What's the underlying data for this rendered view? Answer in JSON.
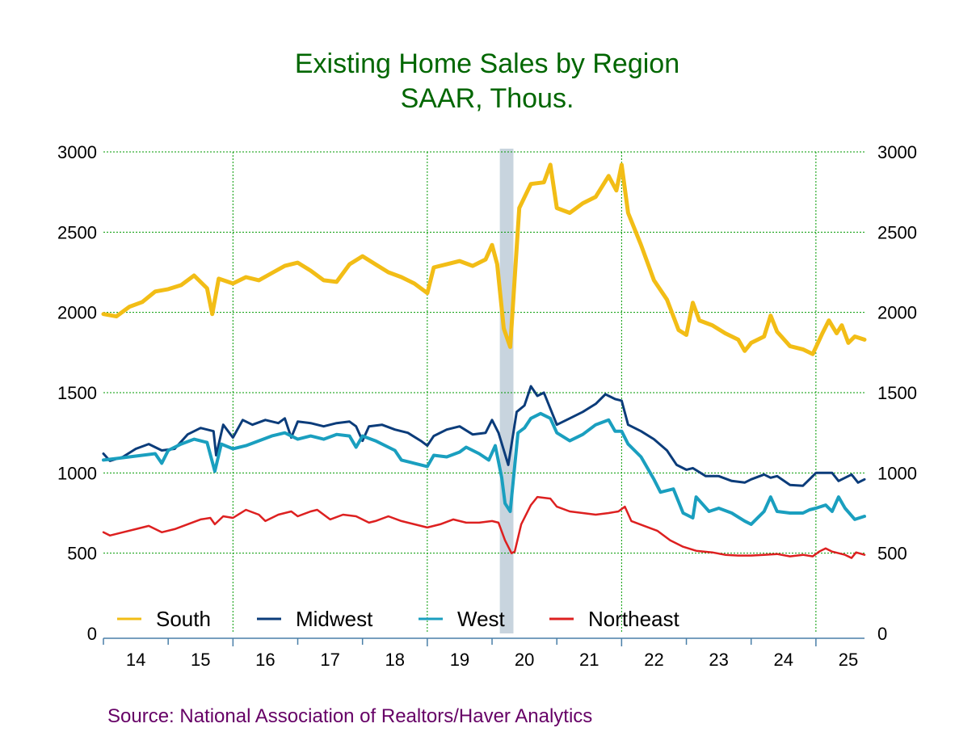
{
  "chart_data": {
    "type": "line",
    "title": "Existing Home Sales by Region",
    "subtitle": "SAAR, Thous.",
    "source": "Source:  National Association of Realtors/Haver Analytics",
    "ylim": [
      0,
      3000
    ],
    "yticks": [
      0,
      500,
      1000,
      1500,
      2000,
      2500,
      3000
    ],
    "xlim": [
      2014.0,
      2025.75
    ],
    "xtick_labels": [
      "14",
      "15",
      "16",
      "17",
      "18",
      "19",
      "20",
      "21",
      "22",
      "23",
      "24",
      "25"
    ],
    "grid": true,
    "recession_band": [
      2020.12,
      2020.33
    ],
    "legend_position": "bottom-left",
    "colors": {
      "South": "#f2bd16",
      "Midwest": "#0b3c7a",
      "West": "#1a9fbf",
      "Northeast": "#dd2020",
      "grid": "#009900",
      "recession": "#c8d4de",
      "title": "#006600",
      "source": "#660066"
    },
    "series": [
      {
        "name": "South",
        "width": 5,
        "points": [
          [
            2014.0,
            1990
          ],
          [
            2014.2,
            1975
          ],
          [
            2014.4,
            2035
          ],
          [
            2014.6,
            2065
          ],
          [
            2014.8,
            2130
          ],
          [
            2015.0,
            2145
          ],
          [
            2015.2,
            2170
          ],
          [
            2015.4,
            2230
          ],
          [
            2015.6,
            2150
          ],
          [
            2015.68,
            1990
          ],
          [
            2015.78,
            2210
          ],
          [
            2016.0,
            2180
          ],
          [
            2016.2,
            2220
          ],
          [
            2016.4,
            2200
          ],
          [
            2016.6,
            2245
          ],
          [
            2016.8,
            2290
          ],
          [
            2017.0,
            2310
          ],
          [
            2017.2,
            2260
          ],
          [
            2017.4,
            2200
          ],
          [
            2017.6,
            2190
          ],
          [
            2017.8,
            2300
          ],
          [
            2018.0,
            2350
          ],
          [
            2018.2,
            2300
          ],
          [
            2018.4,
            2250
          ],
          [
            2018.6,
            2220
          ],
          [
            2018.8,
            2180
          ],
          [
            2019.0,
            2120
          ],
          [
            2019.1,
            2280
          ],
          [
            2019.3,
            2300
          ],
          [
            2019.5,
            2320
          ],
          [
            2019.7,
            2290
          ],
          [
            2019.9,
            2330
          ],
          [
            2020.0,
            2420
          ],
          [
            2020.08,
            2300
          ],
          [
            2020.18,
            1900
          ],
          [
            2020.28,
            1785
          ],
          [
            2020.42,
            2650
          ],
          [
            2020.6,
            2800
          ],
          [
            2020.8,
            2810
          ],
          [
            2020.9,
            2920
          ],
          [
            2021.0,
            2650
          ],
          [
            2021.2,
            2620
          ],
          [
            2021.4,
            2680
          ],
          [
            2021.6,
            2720
          ],
          [
            2021.8,
            2850
          ],
          [
            2021.92,
            2760
          ],
          [
            2022.0,
            2920
          ],
          [
            2022.1,
            2620
          ],
          [
            2022.3,
            2420
          ],
          [
            2022.5,
            2200
          ],
          [
            2022.7,
            2080
          ],
          [
            2022.88,
            1890
          ],
          [
            2023.0,
            1860
          ],
          [
            2023.1,
            2060
          ],
          [
            2023.2,
            1950
          ],
          [
            2023.4,
            1920
          ],
          [
            2023.6,
            1870
          ],
          [
            2023.8,
            1830
          ],
          [
            2023.9,
            1760
          ],
          [
            2024.0,
            1810
          ],
          [
            2024.2,
            1850
          ],
          [
            2024.3,
            1980
          ],
          [
            2024.4,
            1880
          ],
          [
            2024.6,
            1790
          ],
          [
            2024.8,
            1770
          ],
          [
            2024.95,
            1740
          ],
          [
            2025.1,
            1870
          ],
          [
            2025.2,
            1950
          ],
          [
            2025.32,
            1870
          ],
          [
            2025.4,
            1920
          ],
          [
            2025.5,
            1810
          ],
          [
            2025.6,
            1850
          ],
          [
            2025.75,
            1830
          ]
        ]
      },
      {
        "name": "Midwest",
        "width": 3,
        "points": [
          [
            2014.0,
            1120
          ],
          [
            2014.1,
            1075
          ],
          [
            2014.3,
            1100
          ],
          [
            2014.5,
            1150
          ],
          [
            2014.7,
            1180
          ],
          [
            2014.9,
            1140
          ],
          [
            2015.1,
            1150
          ],
          [
            2015.3,
            1240
          ],
          [
            2015.5,
            1280
          ],
          [
            2015.7,
            1260
          ],
          [
            2015.74,
            1110
          ],
          [
            2015.85,
            1300
          ],
          [
            2016.0,
            1220
          ],
          [
            2016.15,
            1330
          ],
          [
            2016.3,
            1300
          ],
          [
            2016.5,
            1330
          ],
          [
            2016.7,
            1310
          ],
          [
            2016.8,
            1340
          ],
          [
            2016.9,
            1220
          ],
          [
            2017.0,
            1320
          ],
          [
            2017.2,
            1310
          ],
          [
            2017.4,
            1290
          ],
          [
            2017.6,
            1310
          ],
          [
            2017.8,
            1320
          ],
          [
            2017.9,
            1290
          ],
          [
            2018.0,
            1200
          ],
          [
            2018.1,
            1290
          ],
          [
            2018.3,
            1300
          ],
          [
            2018.5,
            1270
          ],
          [
            2018.7,
            1250
          ],
          [
            2018.9,
            1200
          ],
          [
            2019.0,
            1170
          ],
          [
            2019.1,
            1230
          ],
          [
            2019.3,
            1270
          ],
          [
            2019.5,
            1290
          ],
          [
            2019.7,
            1240
          ],
          [
            2019.9,
            1250
          ],
          [
            2020.0,
            1330
          ],
          [
            2020.1,
            1250
          ],
          [
            2020.25,
            1050
          ],
          [
            2020.38,
            1380
          ],
          [
            2020.5,
            1420
          ],
          [
            2020.6,
            1540
          ],
          [
            2020.7,
            1480
          ],
          [
            2020.8,
            1500
          ],
          [
            2020.92,
            1380
          ],
          [
            2021.0,
            1300
          ],
          [
            2021.2,
            1340
          ],
          [
            2021.4,
            1380
          ],
          [
            2021.6,
            1430
          ],
          [
            2021.75,
            1490
          ],
          [
            2021.9,
            1460
          ],
          [
            2022.0,
            1450
          ],
          [
            2022.1,
            1300
          ],
          [
            2022.3,
            1260
          ],
          [
            2022.5,
            1210
          ],
          [
            2022.7,
            1140
          ],
          [
            2022.85,
            1050
          ],
          [
            2023.0,
            1020
          ],
          [
            2023.1,
            1030
          ],
          [
            2023.3,
            980
          ],
          [
            2023.5,
            980
          ],
          [
            2023.7,
            950
          ],
          [
            2023.9,
            940
          ],
          [
            2024.0,
            960
          ],
          [
            2024.2,
            990
          ],
          [
            2024.3,
            970
          ],
          [
            2024.4,
            980
          ],
          [
            2024.6,
            925
          ],
          [
            2024.8,
            920
          ],
          [
            2024.9,
            960
          ],
          [
            2025.0,
            1000
          ],
          [
            2025.25,
            1000
          ],
          [
            2025.35,
            950
          ],
          [
            2025.55,
            990
          ],
          [
            2025.65,
            940
          ],
          [
            2025.75,
            960
          ]
        ]
      },
      {
        "name": "West",
        "width": 4,
        "points": [
          [
            2014.0,
            1080
          ],
          [
            2014.2,
            1090
          ],
          [
            2014.4,
            1100
          ],
          [
            2014.6,
            1110
          ],
          [
            2014.8,
            1120
          ],
          [
            2014.9,
            1060
          ],
          [
            2015.0,
            1140
          ],
          [
            2015.2,
            1180
          ],
          [
            2015.4,
            1210
          ],
          [
            2015.6,
            1190
          ],
          [
            2015.72,
            1010
          ],
          [
            2015.82,
            1180
          ],
          [
            2016.0,
            1150
          ],
          [
            2016.2,
            1170
          ],
          [
            2016.4,
            1200
          ],
          [
            2016.6,
            1230
          ],
          [
            2016.8,
            1250
          ],
          [
            2017.0,
            1210
          ],
          [
            2017.2,
            1230
          ],
          [
            2017.4,
            1210
          ],
          [
            2017.6,
            1240
          ],
          [
            2017.8,
            1230
          ],
          [
            2017.9,
            1160
          ],
          [
            2018.0,
            1230
          ],
          [
            2018.2,
            1200
          ],
          [
            2018.4,
            1160
          ],
          [
            2018.5,
            1140
          ],
          [
            2018.6,
            1080
          ],
          [
            2018.8,
            1060
          ],
          [
            2019.0,
            1040
          ],
          [
            2019.1,
            1110
          ],
          [
            2019.3,
            1100
          ],
          [
            2019.5,
            1130
          ],
          [
            2019.6,
            1160
          ],
          [
            2019.8,
            1120
          ],
          [
            2019.95,
            1080
          ],
          [
            2020.05,
            1170
          ],
          [
            2020.15,
            970
          ],
          [
            2020.2,
            810
          ],
          [
            2020.28,
            760
          ],
          [
            2020.4,
            1250
          ],
          [
            2020.5,
            1280
          ],
          [
            2020.6,
            1340
          ],
          [
            2020.75,
            1370
          ],
          [
            2020.9,
            1340
          ],
          [
            2021.0,
            1250
          ],
          [
            2021.2,
            1200
          ],
          [
            2021.4,
            1240
          ],
          [
            2021.6,
            1300
          ],
          [
            2021.8,
            1330
          ],
          [
            2021.9,
            1260
          ],
          [
            2022.0,
            1260
          ],
          [
            2022.1,
            1180
          ],
          [
            2022.3,
            1100
          ],
          [
            2022.5,
            960
          ],
          [
            2022.6,
            880
          ],
          [
            2022.8,
            900
          ],
          [
            2022.95,
            750
          ],
          [
            2023.1,
            720
          ],
          [
            2023.15,
            850
          ],
          [
            2023.35,
            760
          ],
          [
            2023.5,
            780
          ],
          [
            2023.7,
            750
          ],
          [
            2023.9,
            700
          ],
          [
            2024.0,
            680
          ],
          [
            2024.2,
            760
          ],
          [
            2024.3,
            850
          ],
          [
            2024.4,
            760
          ],
          [
            2024.6,
            750
          ],
          [
            2024.8,
            750
          ],
          [
            2024.9,
            770
          ],
          [
            2025.0,
            780
          ],
          [
            2025.15,
            800
          ],
          [
            2025.25,
            760
          ],
          [
            2025.35,
            850
          ],
          [
            2025.45,
            780
          ],
          [
            2025.6,
            710
          ],
          [
            2025.75,
            730
          ]
        ]
      },
      {
        "name": "Northeast",
        "width": 2.5,
        "points": [
          [
            2014.0,
            630
          ],
          [
            2014.1,
            610
          ],
          [
            2014.3,
            630
          ],
          [
            2014.5,
            650
          ],
          [
            2014.7,
            670
          ],
          [
            2014.9,
            630
          ],
          [
            2015.1,
            650
          ],
          [
            2015.3,
            680
          ],
          [
            2015.5,
            710
          ],
          [
            2015.65,
            720
          ],
          [
            2015.72,
            680
          ],
          [
            2015.85,
            730
          ],
          [
            2016.0,
            720
          ],
          [
            2016.2,
            770
          ],
          [
            2016.4,
            740
          ],
          [
            2016.5,
            700
          ],
          [
            2016.7,
            740
          ],
          [
            2016.9,
            760
          ],
          [
            2017.0,
            730
          ],
          [
            2017.2,
            760
          ],
          [
            2017.3,
            770
          ],
          [
            2017.5,
            710
          ],
          [
            2017.7,
            740
          ],
          [
            2017.9,
            730
          ],
          [
            2018.1,
            690
          ],
          [
            2018.2,
            700
          ],
          [
            2018.4,
            730
          ],
          [
            2018.6,
            700
          ],
          [
            2018.8,
            680
          ],
          [
            2019.0,
            660
          ],
          [
            2019.2,
            680
          ],
          [
            2019.4,
            710
          ],
          [
            2019.6,
            690
          ],
          [
            2019.8,
            690
          ],
          [
            2020.0,
            700
          ],
          [
            2020.1,
            690
          ],
          [
            2020.2,
            580
          ],
          [
            2020.3,
            500
          ],
          [
            2020.35,
            510
          ],
          [
            2020.45,
            680
          ],
          [
            2020.6,
            800
          ],
          [
            2020.7,
            850
          ],
          [
            2020.9,
            840
          ],
          [
            2021.0,
            790
          ],
          [
            2021.2,
            760
          ],
          [
            2021.4,
            750
          ],
          [
            2021.6,
            740
          ],
          [
            2021.8,
            750
          ],
          [
            2021.95,
            760
          ],
          [
            2022.05,
            790
          ],
          [
            2022.15,
            700
          ],
          [
            2022.35,
            670
          ],
          [
            2022.55,
            640
          ],
          [
            2022.75,
            580
          ],
          [
            2022.95,
            540
          ],
          [
            2023.15,
            515
          ],
          [
            2023.4,
            505
          ],
          [
            2023.6,
            490
          ],
          [
            2023.8,
            485
          ],
          [
            2024.0,
            485
          ],
          [
            2024.2,
            490
          ],
          [
            2024.4,
            495
          ],
          [
            2024.6,
            480
          ],
          [
            2024.8,
            490
          ],
          [
            2024.95,
            480
          ],
          [
            2025.05,
            510
          ],
          [
            2025.15,
            530
          ],
          [
            2025.25,
            510
          ],
          [
            2025.45,
            490
          ],
          [
            2025.55,
            470
          ],
          [
            2025.62,
            505
          ],
          [
            2025.75,
            490
          ]
        ]
      }
    ]
  }
}
